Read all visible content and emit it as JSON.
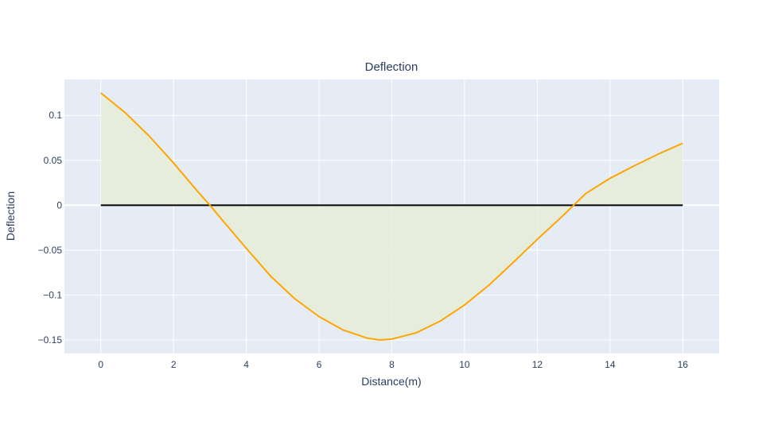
{
  "chart_data": {
    "type": "area",
    "title": "Deflection",
    "xlabel": "Distance(m)",
    "ylabel": "Deflection",
    "xlim": [
      -1,
      17
    ],
    "ylim": [
      -0.165,
      0.14
    ],
    "xticks": [
      0,
      2,
      4,
      6,
      8,
      10,
      12,
      14,
      16
    ],
    "xtick_labels": [
      "0",
      "2",
      "4",
      "6",
      "8",
      "10",
      "12",
      "14",
      "16"
    ],
    "yticks": [
      0.1,
      0.05,
      0,
      -0.05,
      -0.1,
      -0.15
    ],
    "ytick_labels": [
      "0.1",
      "0.05",
      "0",
      "−0.05",
      "−0.1",
      "−0.15"
    ],
    "grid": true,
    "colors": {
      "plot_bg": "#e5ecf6",
      "grid": "#ffffff",
      "deflection_line": "#ffa500",
      "fill": "#e6edd8",
      "baseline": "#000000"
    },
    "series": [
      {
        "role": "deflection-curve",
        "x": [
          0,
          0.67,
          1.33,
          2,
          2.67,
          3,
          3.33,
          4,
          4.67,
          5.33,
          6,
          6.67,
          7.33,
          7.67,
          8,
          8.67,
          9.33,
          10,
          10.67,
          11.33,
          12,
          12.67,
          13,
          13.33,
          14,
          14.67,
          15.33,
          16
        ],
        "y": [
          0.125,
          0.103,
          0.077,
          0.047,
          0.015,
          0.0,
          -0.016,
          -0.048,
          -0.079,
          -0.104,
          -0.124,
          -0.139,
          -0.148,
          -0.15,
          -0.149,
          -0.142,
          -0.129,
          -0.111,
          -0.089,
          -0.064,
          -0.038,
          -0.013,
          0.0,
          0.013,
          0.03,
          0.044,
          0.057,
          0.069
        ]
      },
      {
        "role": "baseline",
        "x": [
          0,
          16
        ],
        "y": [
          0,
          0
        ]
      }
    ]
  }
}
